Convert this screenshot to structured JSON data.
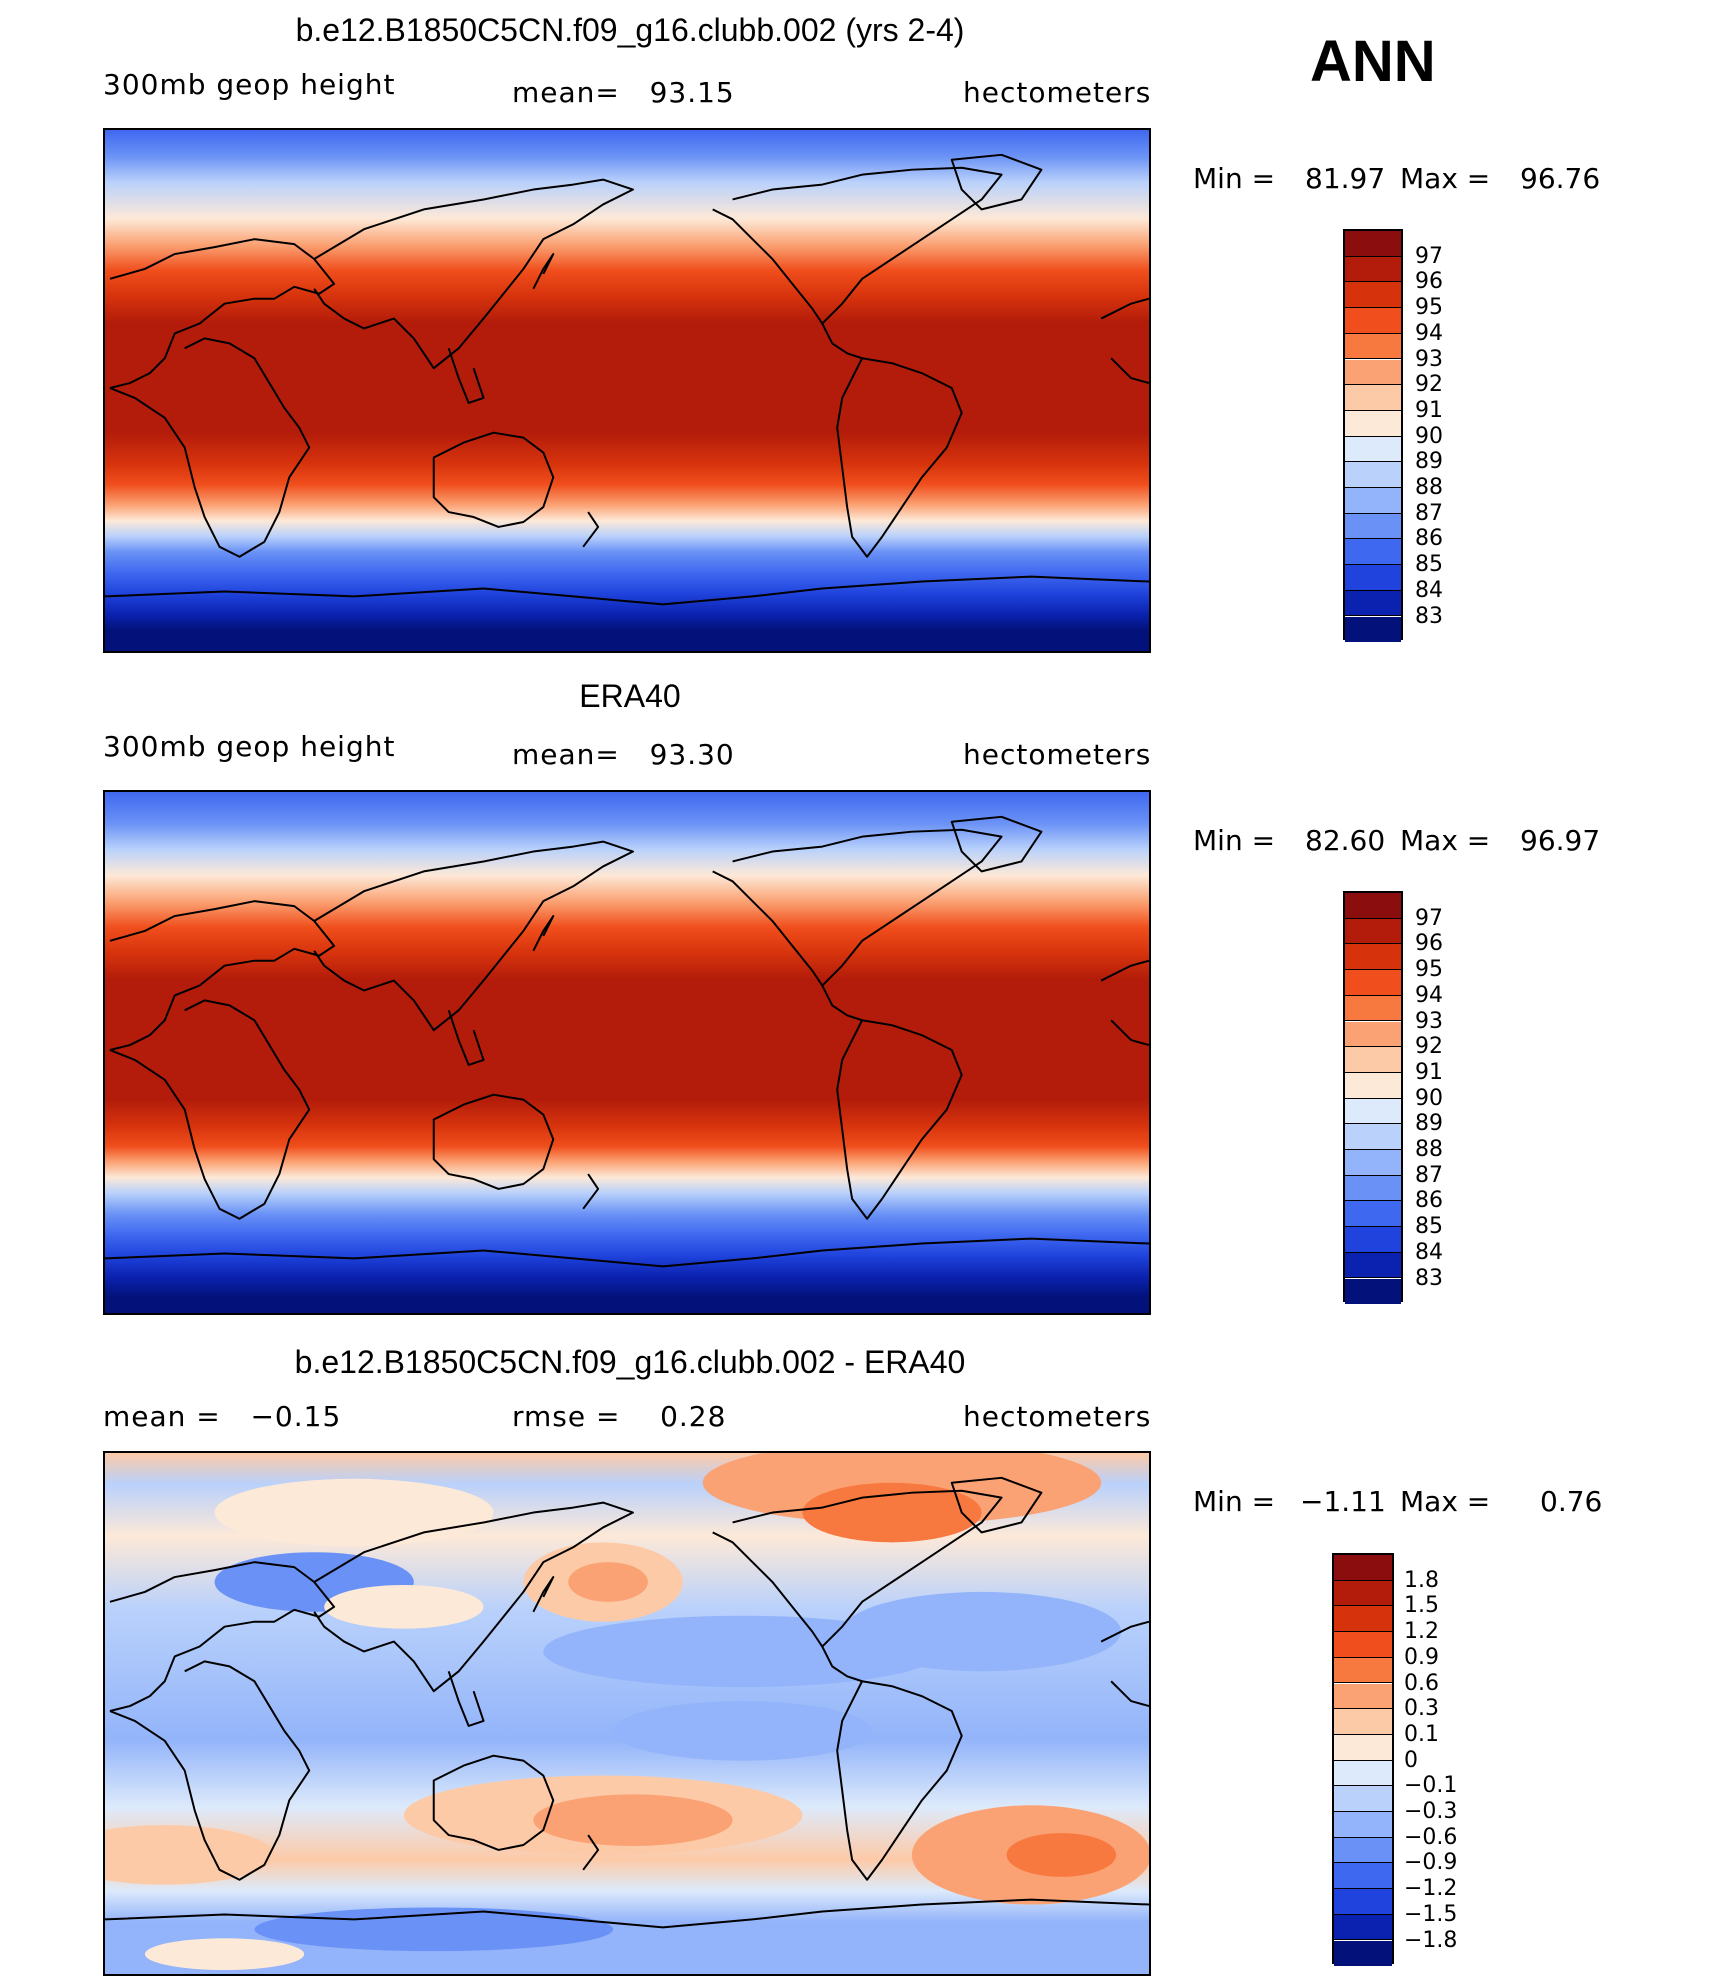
{
  "header": {
    "season": "ANN"
  },
  "panels": [
    {
      "title": "b.e12.B1850C5CN.f09_g16.clubb.002 (yrs 2-4)",
      "left_label": "300mb geop height",
      "center_label": "mean=   93.15",
      "right_label": "hectometers",
      "min_label": "Min =",
      "min_value": "81.97",
      "max_label": "Max =",
      "max_value": "96.76"
    },
    {
      "title": "ERA40",
      "left_label": "300mb geop height",
      "center_label": "mean=   93.30",
      "right_label": "hectometers",
      "min_label": "Min =",
      "min_value": "82.60",
      "max_label": "Max =",
      "max_value": "96.97"
    },
    {
      "title": "b.e12.B1850C5CN.f09_g16.clubb.002 - ERA40",
      "left_label": "mean =   −0.15",
      "center_label": "rmse =    0.28",
      "right_label": "hectometers",
      "min_label": "Min =",
      "min_value": "−1.11",
      "max_label": "Max =",
      "max_value": "0.76"
    }
  ],
  "colorbars": {
    "absolute": {
      "labels": [
        "97",
        "96",
        "95",
        "94",
        "93",
        "92",
        "91",
        "90",
        "89",
        "88",
        "87",
        "86",
        "85",
        "84",
        "83"
      ],
      "colors": [
        "#8c0d0d",
        "#b31c0a",
        "#d6330d",
        "#f04e1c",
        "#f7793f",
        "#fba274",
        "#fdcaa8",
        "#fde9d8",
        "#ddeafb",
        "#b9d1fb",
        "#93b4fa",
        "#6a92f6",
        "#3f68f0",
        "#1f43dc",
        "#0b22b0",
        "#02127a"
      ]
    },
    "difference": {
      "labels": [
        "1.8",
        "1.5",
        "1.2",
        "0.9",
        "0.6",
        "0.3",
        "0.1",
        "0",
        "−0.1",
        "−0.3",
        "−0.6",
        "−0.9",
        "−1.2",
        "−1.5",
        "−1.8"
      ],
      "colors": [
        "#8c0d0d",
        "#b31c0a",
        "#d6330d",
        "#f04e1c",
        "#f7793f",
        "#fba274",
        "#fdcaa8",
        "#fde9d8",
        "#ddeafb",
        "#b9d1fb",
        "#93b4fa",
        "#6a92f6",
        "#3f68f0",
        "#1f43dc",
        "#0b22b0",
        "#02127a"
      ]
    }
  }
}
